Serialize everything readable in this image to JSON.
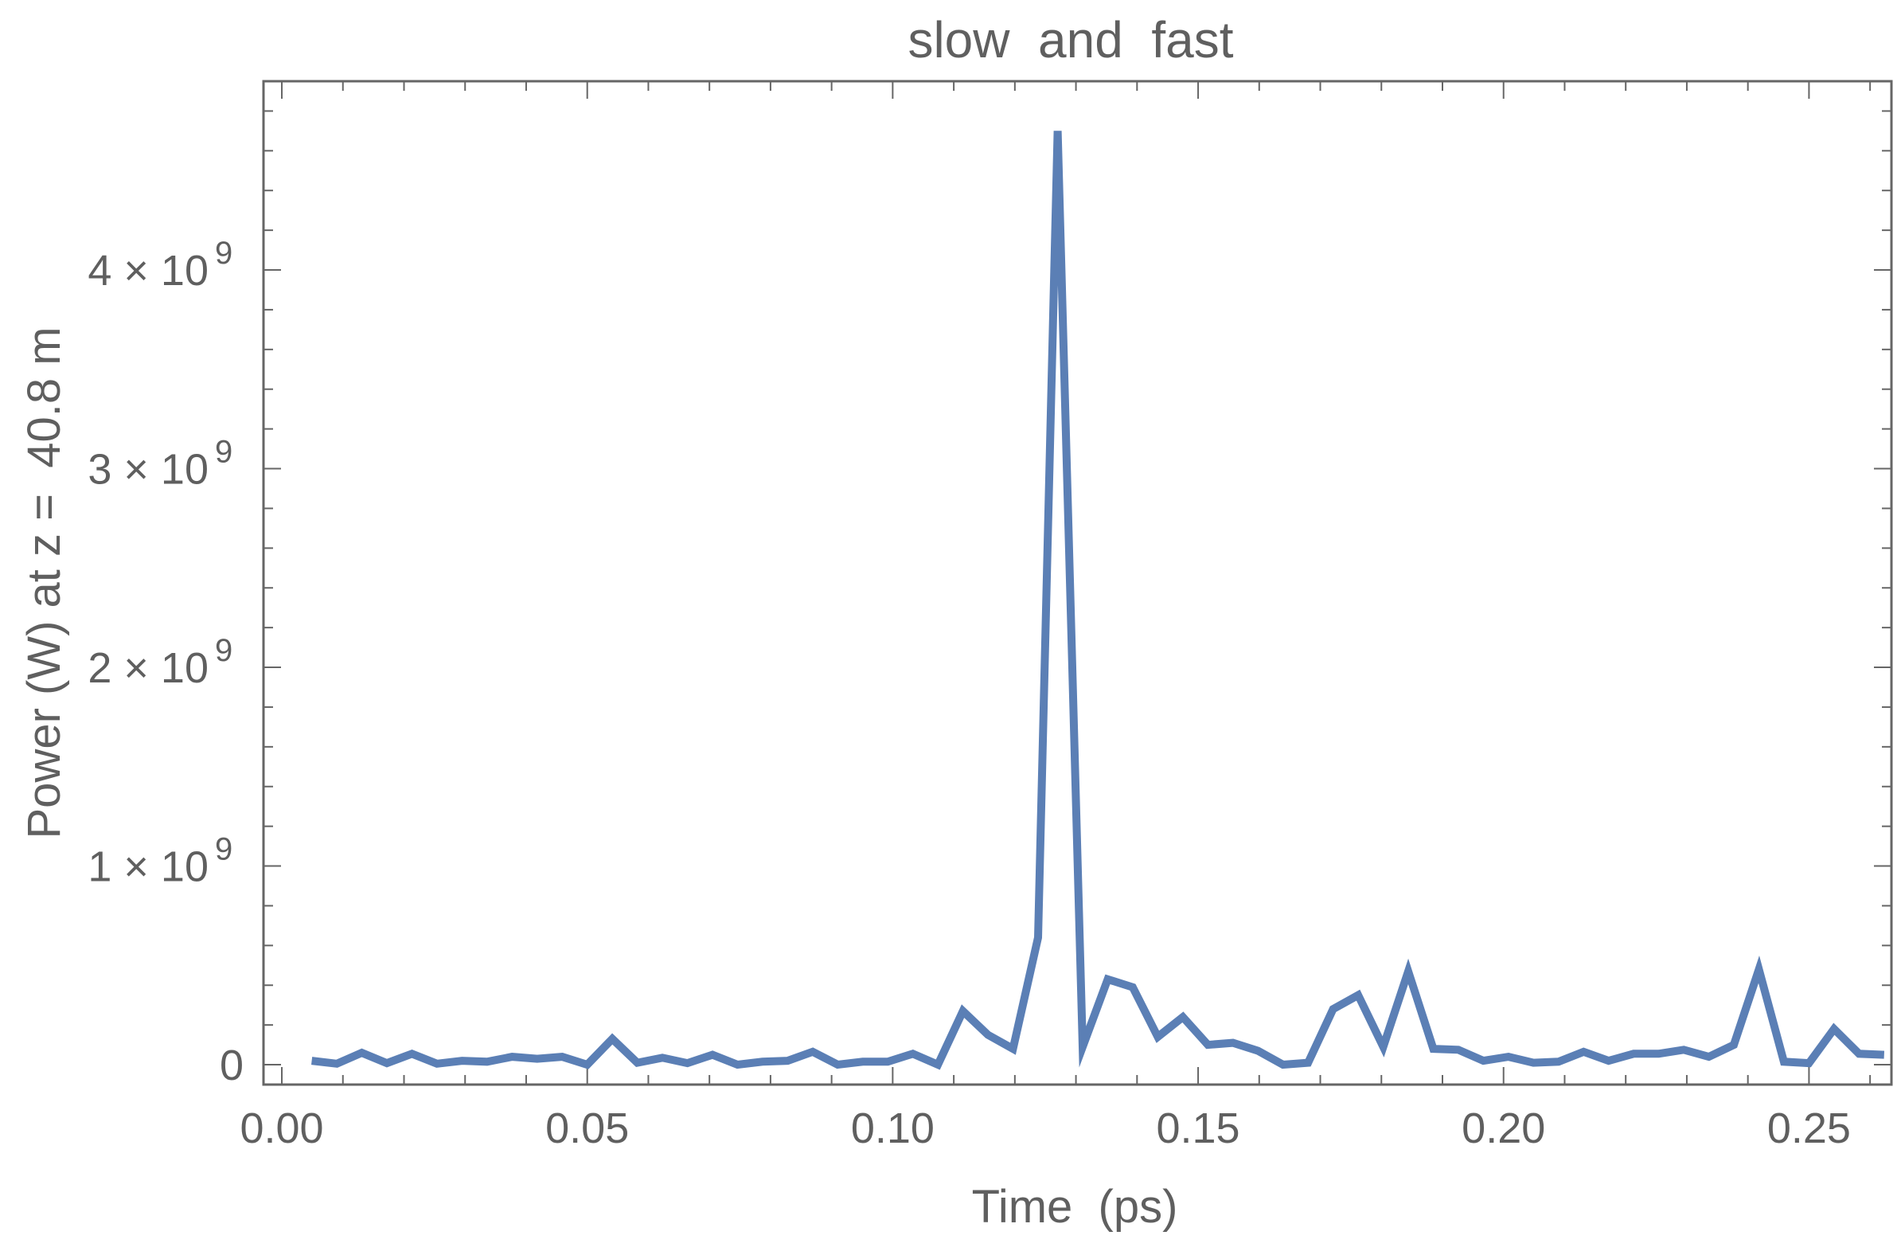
{
  "chart_data": {
    "type": "line",
    "title": "slow  and  fast",
    "xlabel": "Time  (ps)",
    "ylabel": "Power (W) at z =  40.8 m",
    "xlim": [
      -0.003,
      0.2635
    ],
    "ylim": [
      -100000000.0,
      4950000000.0
    ],
    "x_ticks": [
      {
        "value": 0.0,
        "label": "0.00"
      },
      {
        "value": 0.05,
        "label": "0.05"
      },
      {
        "value": 0.1,
        "label": "0.10"
      },
      {
        "value": 0.15,
        "label": "0.15"
      },
      {
        "value": 0.2,
        "label": "0.20"
      },
      {
        "value": 0.25,
        "label": "0.25"
      }
    ],
    "y_ticks": [
      {
        "value": 0,
        "mantissa": "0",
        "exponent": ""
      },
      {
        "value": 1000000000,
        "mantissa": "1 × 10",
        "exponent": "9"
      },
      {
        "value": 2000000000,
        "mantissa": "2 × 10",
        "exponent": "9"
      },
      {
        "value": 3000000000,
        "mantissa": "3 × 10",
        "exponent": "9"
      },
      {
        "value": 4000000000,
        "mantissa": "4 × 10",
        "exponent": "9"
      }
    ],
    "grid": false,
    "line_color": "#5b7fb5",
    "series": [
      {
        "x": [
          0.0049,
          0.009,
          0.0131,
          0.0172,
          0.0213,
          0.0254,
          0.0295,
          0.0336,
          0.0377,
          0.0418,
          0.0459,
          0.05,
          0.0541,
          0.0582,
          0.0623,
          0.0664,
          0.0705,
          0.0746,
          0.0787,
          0.0828,
          0.0869,
          0.091,
          0.0951,
          0.0992,
          0.1033,
          0.1074,
          0.1115,
          0.1156,
          0.1197,
          0.1238,
          0.127,
          0.1311,
          0.1352,
          0.1393,
          0.1434,
          0.1475,
          0.1516,
          0.1557,
          0.1598,
          0.1639,
          0.168,
          0.1721,
          0.1762,
          0.1803,
          0.1844,
          0.1885,
          0.1926,
          0.1967,
          0.2008,
          0.2049,
          0.209,
          0.2131,
          0.2172,
          0.2213,
          0.2254,
          0.2295,
          0.2336,
          0.2377,
          0.2418,
          0.2459,
          0.25,
          0.2541,
          0.2582,
          0.2623
        ],
        "values": [
          20000000,
          5000000,
          60000000,
          8000000,
          55000000,
          5000000,
          20000000,
          15000000,
          40000000,
          30000000,
          40000000,
          0,
          130000000,
          10000000,
          35000000,
          8000000,
          50000000,
          0,
          15000000,
          20000000,
          65000000,
          0,
          15000000,
          15000000,
          55000000,
          0,
          270000000,
          150000000,
          80000000,
          640000000,
          4700000000,
          90000000,
          430000000,
          390000000,
          140000000,
          240000000,
          100000000,
          110000000,
          70000000,
          0,
          10000000,
          280000000,
          350000000,
          90000000,
          470000000,
          80000000,
          75000000,
          20000000,
          40000000,
          10000000,
          15000000,
          65000000,
          20000000,
          55000000,
          55000000,
          75000000,
          40000000,
          100000000,
          480000000,
          15000000,
          8000000,
          180000000,
          55000000,
          50000000
        ]
      }
    ]
  }
}
